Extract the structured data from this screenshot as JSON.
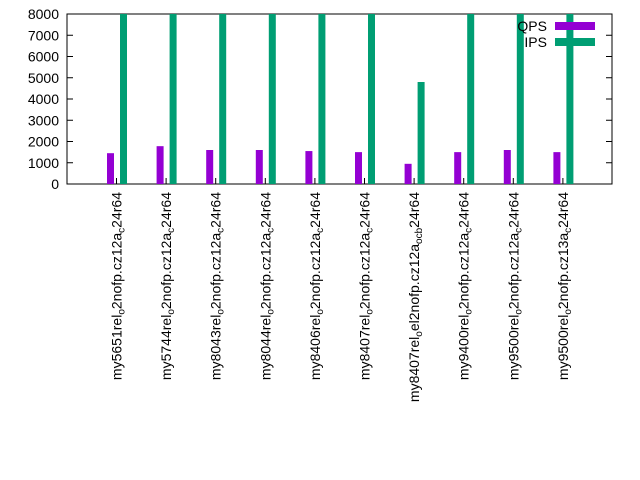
{
  "chart_data": {
    "type": "bar",
    "title": "",
    "xlabel": "",
    "ylabel": "",
    "ylim": [
      0,
      8000
    ],
    "yticks": [
      0,
      1000,
      2000,
      3000,
      4000,
      5000,
      6000,
      7000,
      8000
    ],
    "grid": false,
    "legend_position": "top-right",
    "categories": [
      {
        "base": "my5651",
        "sub1": "rel",
        "mid1": "",
        "sub2": "o",
        "tail": "2nofp.cz12a",
        "sub3": "c",
        "end": "24r64"
      },
      {
        "base": "my5744",
        "sub1": "rel",
        "mid1": "",
        "sub2": "o",
        "tail": "2nofp.cz12a",
        "sub3": "c",
        "end": "24r64"
      },
      {
        "base": "my8043",
        "sub1": "rel",
        "mid1": "",
        "sub2": "o",
        "tail": "2nofp.cz12a",
        "sub3": "c",
        "end": "24r64"
      },
      {
        "base": "my8044",
        "sub1": "rel",
        "mid1": "",
        "sub2": "o",
        "tail": "2nofp.cz12a",
        "sub3": "c",
        "end": "24r64"
      },
      {
        "base": "my8406",
        "sub1": "rel",
        "mid1": "",
        "sub2": "o",
        "tail": "2nofp.cz12a",
        "sub3": "c",
        "end": "24r64"
      },
      {
        "base": "my8407",
        "sub1": "rel",
        "mid1": "",
        "sub2": "o",
        "tail": "2nofp.cz12a",
        "sub3": "c",
        "end": "24r64"
      },
      {
        "base": "my8407",
        "sub1": "rel",
        "mid1": "",
        "sub2": "o",
        "tail": "2nofp.cz12a",
        "sub3": "ocb",
        "end": "24r64",
        "sub_tail": "no"
      },
      {
        "base": "my9400",
        "sub1": "rel",
        "mid1": "",
        "sub2": "o",
        "tail": "2nofp.cz12a",
        "sub3": "c",
        "end": "24r64"
      },
      {
        "base": "my9500",
        "sub1": "rel",
        "mid1": "",
        "sub2": "o",
        "tail": "2nofp.cz12a",
        "sub3": "c",
        "end": "24r64"
      },
      {
        "base": "my9500",
        "sub1": "rel",
        "mid1": "",
        "sub2": "o",
        "tail": "2nofp.cz13a",
        "sub3": "c",
        "end": "24r64"
      }
    ],
    "category_labels": [
      "my5651relo2nofp.cz12ac24r64",
      "my5744relo2nofp.cz12ac24r64",
      "my8043relo2nofp.cz12ac24r64",
      "my8044relo2nofp.cz12ac24r64",
      "my8406relo2nofp.cz12ac24r64",
      "my8407relo2nofp.cz12ac24r64",
      "my8407relo2nofp.cz12anocb24r64",
      "my9400relo2nofp.cz12ac24r64",
      "my9500relo2nofp.cz12ac24r64",
      "my9500relo2nofp.cz13ac24r64"
    ],
    "series": [
      {
        "name": "QPS",
        "color": "#9400d3",
        "values": [
          1450,
          1780,
          1600,
          1600,
          1550,
          1500,
          950,
          1500,
          1600,
          1500
        ]
      },
      {
        "name": "IPS",
        "color": "#009e73",
        "values": [
          8000,
          8000,
          8000,
          8000,
          8000,
          8000,
          4800,
          8000,
          8000,
          8000
        ]
      }
    ]
  }
}
